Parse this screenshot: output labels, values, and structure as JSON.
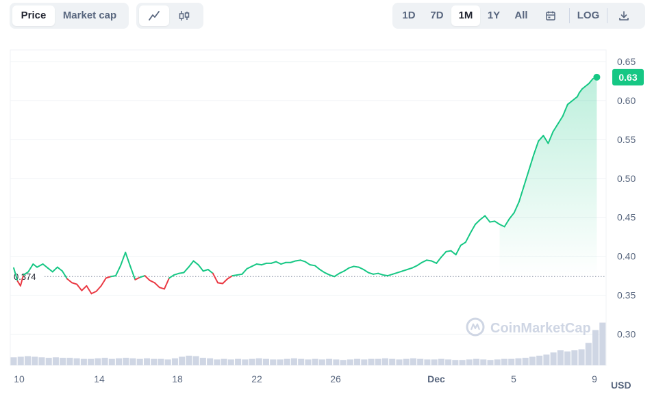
{
  "toolbar": {
    "metric_tabs": [
      {
        "label": "Price",
        "active": true
      },
      {
        "label": "Market cap",
        "active": false
      }
    ],
    "chart_types": [
      {
        "icon": "line-chart-icon",
        "active": true
      },
      {
        "icon": "candlestick-icon",
        "active": false
      }
    ],
    "ranges": [
      {
        "label": "1D",
        "active": false
      },
      {
        "label": "7D",
        "active": false
      },
      {
        "label": "1M",
        "active": true
      },
      {
        "label": "1Y",
        "active": false
      },
      {
        "label": "All",
        "active": false
      }
    ],
    "calendar_icon": "calendar-icon",
    "log_label": "LOG",
    "download_icon": "download-icon"
  },
  "colors": {
    "up": "#16c784",
    "down": "#ea3943",
    "grid": "#eff2f5",
    "axis_text": "#58667e",
    "watermark": "#cfd6e4",
    "volume": "#cfd6e4"
  },
  "watermark": "CoinMarketCap",
  "currency_label": "USD",
  "chart_data": {
    "type": "line",
    "x_ticks": [
      "10",
      "14",
      "18",
      "22",
      "26",
      "Dec",
      "5",
      "9"
    ],
    "y_ticks": [
      0.3,
      0.35,
      0.4,
      0.45,
      0.5,
      0.55,
      0.6,
      0.65
    ],
    "ylim": [
      0.26,
      0.665
    ],
    "baseline": {
      "value": 0.374,
      "label": "0.374"
    },
    "current": {
      "value": 0.63,
      "label": "0.63"
    },
    "series": [
      {
        "x": [
          0,
          0.2,
          0.35,
          0.5,
          0.75,
          1,
          1.2,
          1.5,
          1.75,
          2,
          2.25,
          2.5,
          2.75,
          3,
          3.25,
          3.5,
          3.75,
          4,
          4.25,
          4.5,
          4.75,
          5,
          5.25,
          5.5,
          5.75,
          6,
          6.25,
          6.5,
          6.75,
          7,
          7.25,
          7.5,
          7.75,
          8,
          8.25,
          8.5,
          8.75,
          9,
          9.25,
          9.5,
          9.75,
          10,
          10.25,
          10.5,
          10.75,
          11,
          11.25,
          11.5,
          11.75,
          12,
          12.25,
          12.5,
          12.75,
          13,
          13.25,
          13.5,
          13.75,
          14,
          14.25,
          14.5,
          14.75,
          15,
          15.25,
          15.5,
          15.75,
          16,
          16.25,
          16.5,
          16.75,
          17,
          17.25,
          17.5,
          17.75,
          18,
          18.25,
          18.5,
          18.75,
          19,
          19.25,
          19.5,
          19.75,
          20,
          20.25,
          20.5,
          20.75,
          21,
          21.25,
          21.5,
          21.75,
          22,
          22.25,
          22.5,
          22.75,
          23,
          23.25,
          23.5,
          23.75,
          24,
          24.25,
          24.5,
          24.75,
          25,
          25.25,
          25.5,
          25.75,
          26,
          26.25,
          26.5,
          26.75,
          27,
          27.25,
          27.5,
          27.75,
          28,
          28.25,
          28.5,
          28.75,
          29,
          29.1,
          29.25,
          29.4,
          29.5,
          29.6,
          29.7,
          29.8,
          29.9,
          30
        ],
        "values": [
          0.385,
          0.368,
          0.362,
          0.376,
          0.38,
          0.39,
          0.386,
          0.39,
          0.385,
          0.38,
          0.386,
          0.381,
          0.371,
          0.366,
          0.364,
          0.356,
          0.362,
          0.352,
          0.355,
          0.362,
          0.372,
          0.374,
          0.375,
          0.388,
          0.405,
          0.387,
          0.37,
          0.373,
          0.375,
          0.369,
          0.366,
          0.36,
          0.358,
          0.372,
          0.376,
          0.378,
          0.379,
          0.386,
          0.394,
          0.389,
          0.381,
          0.383,
          0.378,
          0.366,
          0.365,
          0.371,
          0.375,
          0.376,
          0.377,
          0.384,
          0.387,
          0.39,
          0.389,
          0.391,
          0.391,
          0.393,
          0.39,
          0.392,
          0.392,
          0.394,
          0.395,
          0.393,
          0.389,
          0.388,
          0.383,
          0.379,
          0.376,
          0.374,
          0.378,
          0.381,
          0.385,
          0.387,
          0.386,
          0.383,
          0.379,
          0.377,
          0.378,
          0.376,
          0.375,
          0.377,
          0.379,
          0.381,
          0.383,
          0.385,
          0.388,
          0.392,
          0.395,
          0.394,
          0.391,
          0.399,
          0.406,
          0.407,
          0.402,
          0.414,
          0.418,
          0.43,
          0.441,
          0.447,
          0.452,
          0.444,
          0.445,
          0.441,
          0.438,
          0.448,
          0.456,
          0.47,
          0.49,
          0.51,
          0.53,
          0.548,
          0.555,
          0.545,
          0.56,
          0.57,
          0.58,
          0.595,
          0.6,
          0.605,
          0.61,
          0.615,
          0.618,
          0.62,
          0.622,
          0.625,
          0.628,
          0.629,
          0.63
        ]
      }
    ],
    "volume": [
      0.15,
      0.16,
      0.17,
      0.16,
      0.15,
      0.14,
      0.15,
      0.14,
      0.14,
      0.13,
      0.12,
      0.12,
      0.13,
      0.14,
      0.12,
      0.13,
      0.14,
      0.13,
      0.12,
      0.13,
      0.12,
      0.12,
      0.11,
      0.13,
      0.16,
      0.18,
      0.17,
      0.14,
      0.13,
      0.11,
      0.12,
      0.11,
      0.12,
      0.11,
      0.12,
      0.13,
      0.12,
      0.11,
      0.11,
      0.12,
      0.13,
      0.12,
      0.11,
      0.12,
      0.11,
      0.12,
      0.11,
      0.1,
      0.11,
      0.12,
      0.11,
      0.12,
      0.12,
      0.13,
      0.12,
      0.11,
      0.12,
      0.13,
      0.12,
      0.11,
      0.11,
      0.12,
      0.11,
      0.1,
      0.1,
      0.11,
      0.12,
      0.11,
      0.1,
      0.11,
      0.12,
      0.12,
      0.13,
      0.14,
      0.16,
      0.18,
      0.2,
      0.24,
      0.28,
      0.26,
      0.28,
      0.3,
      0.42,
      0.66,
      0.8
    ]
  }
}
